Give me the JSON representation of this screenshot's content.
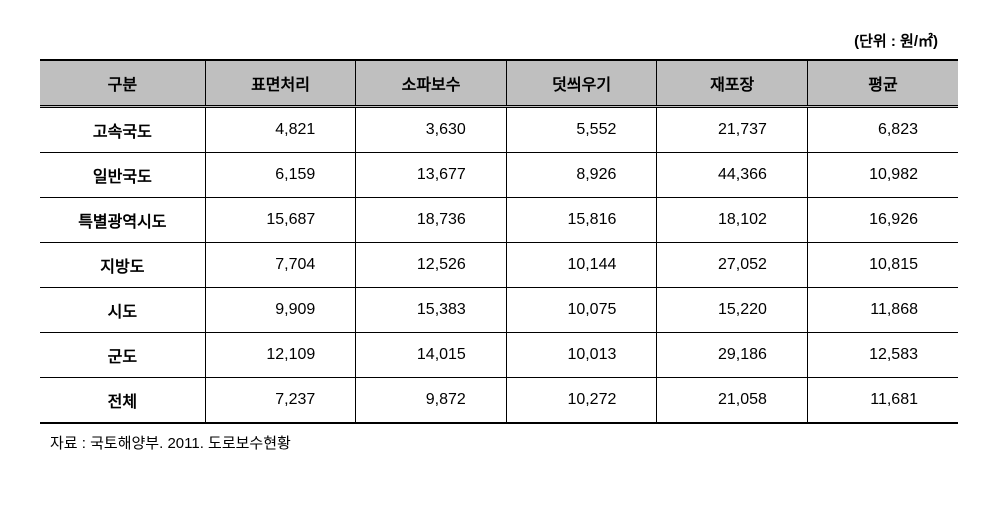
{
  "unit_label": "(단위 : 원/㎡)",
  "columns": [
    "구분",
    "표면처리",
    "소파보수",
    "덧씌우기",
    "재포장",
    "평균"
  ],
  "rows": [
    {
      "label": "고속국도",
      "values": [
        "4,821",
        "3,630",
        "5,552",
        "21,737",
        "6,823"
      ]
    },
    {
      "label": "일반국도",
      "values": [
        "6,159",
        "13,677",
        "8,926",
        "44,366",
        "10,982"
      ]
    },
    {
      "label": "특별광역시도",
      "values": [
        "15,687",
        "18,736",
        "15,816",
        "18,102",
        "16,926"
      ]
    },
    {
      "label": "지방도",
      "values": [
        "7,704",
        "12,526",
        "10,144",
        "27,052",
        "10,815"
      ]
    },
    {
      "label": "시도",
      "values": [
        "9,909",
        "15,383",
        "10,075",
        "15,220",
        "11,868"
      ]
    },
    {
      "label": "군도",
      "values": [
        "12,109",
        "14,015",
        "10,013",
        "29,186",
        "12,583"
      ]
    },
    {
      "label": "전체",
      "values": [
        "7,237",
        "9,872",
        "10,272",
        "21,058",
        "11,681"
      ]
    }
  ],
  "source": "자료 : 국토해양부. 2011. 도로보수현황"
}
